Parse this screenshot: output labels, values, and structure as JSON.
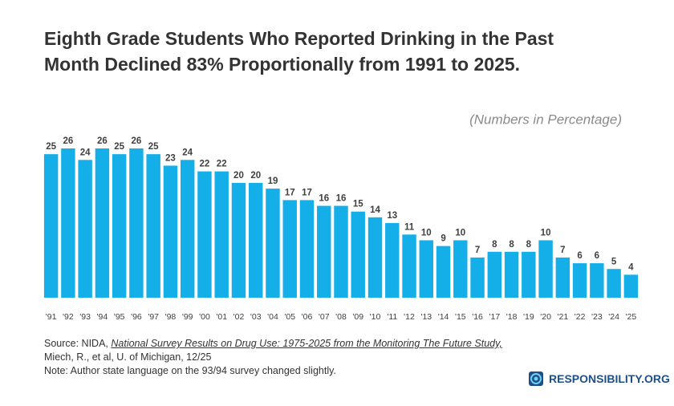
{
  "chart_data": {
    "type": "bar",
    "title": "Eighth Grade Students Who Reported Drinking in the Past Month Declined 83% Proportionally from 1991 to 2025.",
    "subtitle": "(Numbers in Percentage)",
    "categories": [
      "'91",
      "'92",
      "'93",
      "'94",
      "'95",
      "'96",
      "'97",
      "'98",
      "'99",
      "'00",
      "'01",
      "'02",
      "'03",
      "'04",
      "'05",
      "'06",
      "'07",
      "'08",
      "'09",
      "'10",
      "'11",
      "'12",
      "'13",
      "'14",
      "'15",
      "'16",
      "'17",
      "'18",
      "'19",
      "'20",
      "'21",
      "'22",
      "'23",
      "'24",
      "'25"
    ],
    "values": [
      25,
      26,
      24,
      26,
      25,
      26,
      25,
      23,
      24,
      22,
      22,
      20,
      20,
      19,
      17,
      17,
      16,
      16,
      15,
      14,
      13,
      11,
      10,
      9,
      10,
      7,
      8,
      8,
      8,
      10,
      7,
      6,
      6,
      5,
      4
    ],
    "color": "#14aee8",
    "source_prefix": "Source: NIDA,",
    "source_title": "National Survey Results on Drug Use: 1975-2025 from the Monitoring The Future Study,",
    "source_line2": "Miech, R., et al, U. of Michigan, 12/25",
    "note": "Note: Author state language on the 93/94 survey changed slightly.",
    "logo": "RESPONSIBILITY.ORG"
  }
}
